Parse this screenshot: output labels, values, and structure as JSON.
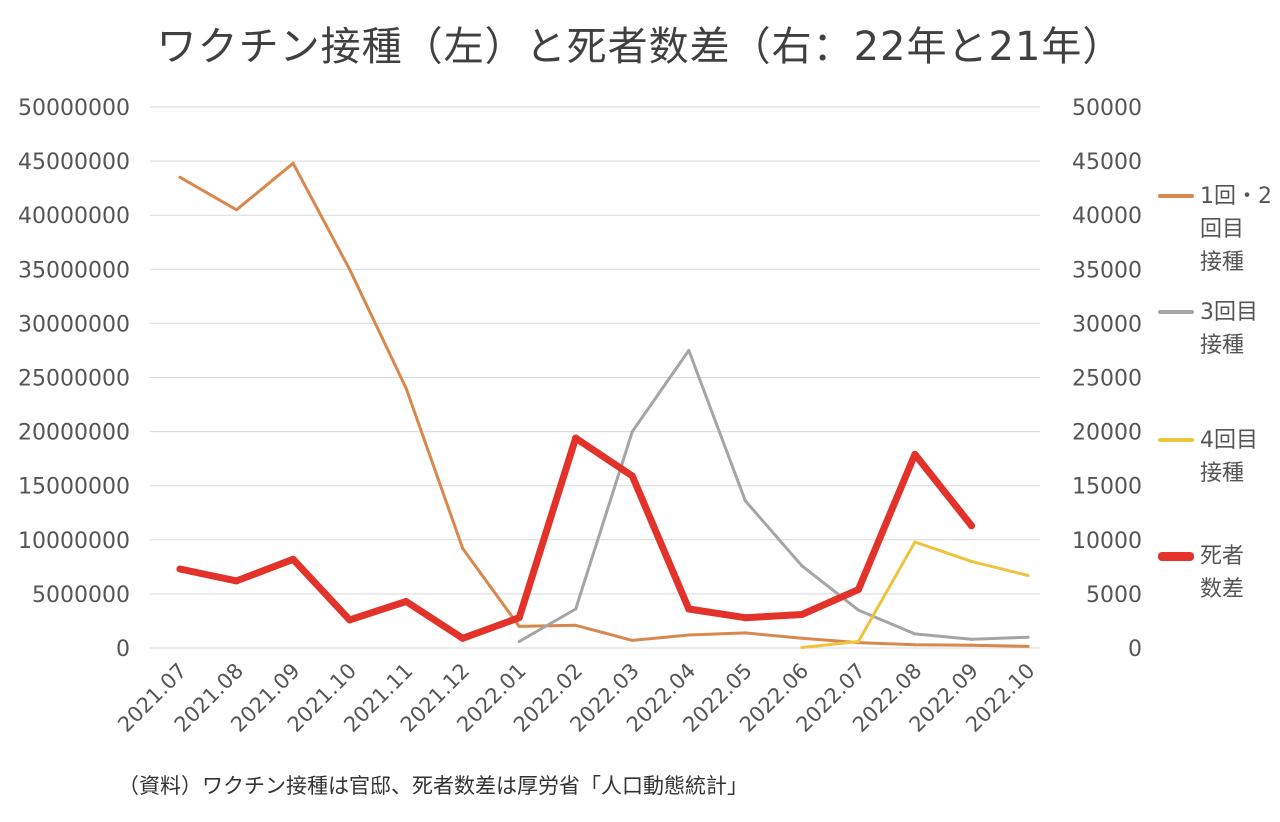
{
  "title": "ワクチン接種（左）と死者数差（右：22年と21年）",
  "source": "（資料）ワクチン接種は官邸、死者数差は厚労省「人口動態統計」",
  "chart_data": {
    "type": "line",
    "title": "ワクチン接種（左）と死者数差（右：22年と21年）",
    "categories": [
      "2021.07",
      "2021.08",
      "2021.09",
      "2021.10",
      "2021.11",
      "2021.12",
      "2022.01",
      "2022.02",
      "2022.03",
      "2022.04",
      "2022.05",
      "2022.06",
      "2022.07",
      "2022.08",
      "2022.09",
      "2022.10"
    ],
    "y_left": {
      "min": 0,
      "max": 50000000,
      "step": 5000000,
      "ticks": [
        "0",
        "5000000",
        "10000000",
        "15000000",
        "20000000",
        "25000000",
        "30000000",
        "35000000",
        "40000000",
        "45000000",
        "50000000"
      ]
    },
    "y_right": {
      "min": 0,
      "max": 50000,
      "step": 5000,
      "ticks": [
        "0",
        "5000",
        "10000",
        "15000",
        "20000",
        "25000",
        "30000",
        "35000",
        "40000",
        "45000",
        "50000"
      ]
    },
    "grid": true,
    "legend_position": "right",
    "series": [
      {
        "name": "1回・2回目接種",
        "legend_lines": [
          "1回・2",
          "回目",
          "接種"
        ],
        "axis": "left",
        "color": "#D8884C",
        "width": "thin",
        "values": [
          43500000,
          40500000,
          44800000,
          35000000,
          24000000,
          9200000,
          2000000,
          2100000,
          700000,
          1200000,
          1400000,
          900000,
          500000,
          300000,
          250000,
          150000
        ]
      },
      {
        "name": "3回目接種",
        "legend_lines": [
          "3回目",
          "接種"
        ],
        "axis": "left",
        "color": "#A5A5A5",
        "width": "thin",
        "values": [
          null,
          null,
          null,
          null,
          null,
          null,
          600000,
          3600000,
          20000000,
          27500000,
          13600000,
          7600000,
          3500000,
          1300000,
          800000,
          1000000
        ]
      },
      {
        "name": "4回目接種",
        "legend_lines": [
          "4回目",
          "接種"
        ],
        "axis": "left",
        "color": "#EDC43C",
        "width": "thin",
        "values": [
          null,
          null,
          null,
          null,
          null,
          null,
          null,
          null,
          null,
          null,
          null,
          50000,
          600000,
          9800000,
          8000000,
          6700000
        ]
      },
      {
        "name": "死者数差",
        "legend_lines": [
          "死者",
          "数差"
        ],
        "axis": "right",
        "color": "#E3322A",
        "width": "thick",
        "values": [
          7300,
          6200,
          8200,
          2600,
          4300,
          900,
          2800,
          19400,
          15900,
          3600,
          2800,
          3100,
          5400,
          17900,
          11300,
          null
        ]
      }
    ]
  }
}
